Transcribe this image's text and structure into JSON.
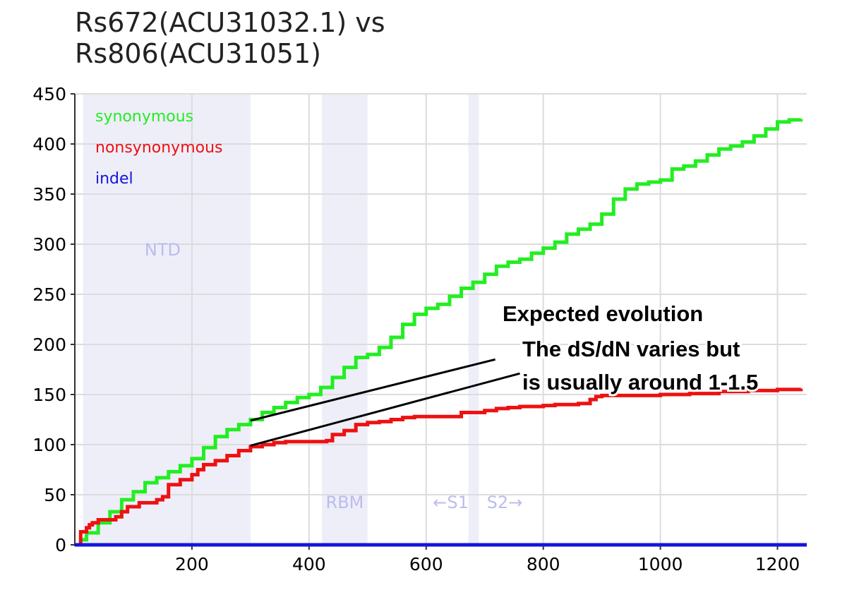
{
  "chart_data": {
    "type": "line",
    "title_lines": [
      "Rs672(ACU31032.1) vs",
      "Rs806(ACU31051)"
    ],
    "xlabel": "",
    "ylabel": "",
    "xlim": [
      0,
      1250
    ],
    "ylim": [
      0,
      450
    ],
    "x_ticks": [
      200,
      400,
      600,
      800,
      1000,
      1200
    ],
    "y_ticks": [
      0,
      50,
      100,
      150,
      200,
      250,
      300,
      350,
      400,
      450
    ],
    "grid": true,
    "legend_position": "top-left",
    "regions": [
      {
        "label": "NTD",
        "start": 14,
        "end": 300,
        "label_x": 150,
        "label_y": 295
      },
      {
        "label": "RBM",
        "start": 422,
        "end": 500,
        "label_x": 461,
        "label_y": 43
      },
      {
        "label": "",
        "start": 672,
        "end": 690
      }
    ],
    "region_color": "#eeeef9",
    "region_label_color": "#bcbcec",
    "markers": [
      {
        "label": "←S1",
        "x": 642,
        "y": 43
      },
      {
        "label": "S2→",
        "x": 734,
        "y": 43
      }
    ],
    "series": [
      {
        "name": "synonymous",
        "color": "#22ee22",
        "x": [
          0,
          10,
          20,
          40,
          60,
          80,
          100,
          120,
          140,
          160,
          180,
          200,
          220,
          240,
          260,
          280,
          300,
          320,
          340,
          360,
          380,
          400,
          420,
          440,
          460,
          480,
          500,
          520,
          540,
          560,
          580,
          600,
          620,
          640,
          660,
          680,
          700,
          720,
          740,
          760,
          780,
          800,
          820,
          840,
          860,
          880,
          900,
          920,
          940,
          960,
          980,
          1000,
          1020,
          1040,
          1060,
          1080,
          1100,
          1120,
          1140,
          1160,
          1180,
          1200,
          1220,
          1240
        ],
        "y": [
          0,
          5,
          12,
          22,
          33,
          45,
          53,
          62,
          67,
          73,
          79,
          86,
          97,
          108,
          115,
          120,
          125,
          132,
          137,
          142,
          147,
          150,
          157,
          167,
          177,
          187,
          190,
          197,
          207,
          220,
          230,
          236,
          240,
          248,
          256,
          262,
          270,
          278,
          282,
          285,
          291,
          296,
          302,
          310,
          315,
          320,
          330,
          345,
          355,
          360,
          362,
          364,
          375,
          378,
          383,
          389,
          395,
          398,
          402,
          408,
          415,
          422,
          424,
          425
        ]
      },
      {
        "name": "nonsynonymous",
        "color": "#ee1111",
        "x": [
          0,
          10,
          20,
          25,
          30,
          40,
          60,
          70,
          80,
          90,
          110,
          140,
          150,
          160,
          180,
          200,
          210,
          220,
          240,
          260,
          280,
          300,
          320,
          340,
          360,
          380,
          400,
          420,
          430,
          440,
          460,
          480,
          500,
          520,
          540,
          560,
          580,
          600,
          620,
          640,
          650,
          660,
          690,
          700,
          720,
          740,
          760,
          780,
          800,
          820,
          840,
          860,
          880,
          890,
          900,
          920,
          950,
          1000,
          1050,
          1100,
          1150,
          1200,
          1240
        ],
        "y": [
          0,
          13,
          17,
          20,
          22,
          25,
          25,
          28,
          33,
          38,
          42,
          45,
          48,
          60,
          65,
          70,
          75,
          80,
          84,
          89,
          94,
          98,
          100,
          102,
          103,
          103,
          103,
          103,
          104,
          110,
          114,
          120,
          122,
          123,
          125,
          127,
          128,
          128,
          128,
          128,
          128,
          132,
          132,
          134,
          136,
          137,
          138,
          138,
          139,
          140,
          140,
          141,
          145,
          148,
          149,
          149,
          149,
          150,
          151,
          153,
          154,
          155,
          156
        ]
      },
      {
        "name": "indel",
        "color": "#1515dd",
        "x": [
          0,
          1250
        ],
        "y": [
          0,
          0
        ]
      }
    ],
    "annotation": {
      "lines": [
        "Expected evolution",
        "The dS/dN varies but",
        "is usually around 1-1.5"
      ],
      "pointers": [
        {
          "from_x": 300,
          "from_y": 124,
          "to_x": 718,
          "to_y": 185
        },
        {
          "from_x": 300,
          "from_y": 99,
          "to_x": 760,
          "to_y": 171
        }
      ]
    }
  }
}
